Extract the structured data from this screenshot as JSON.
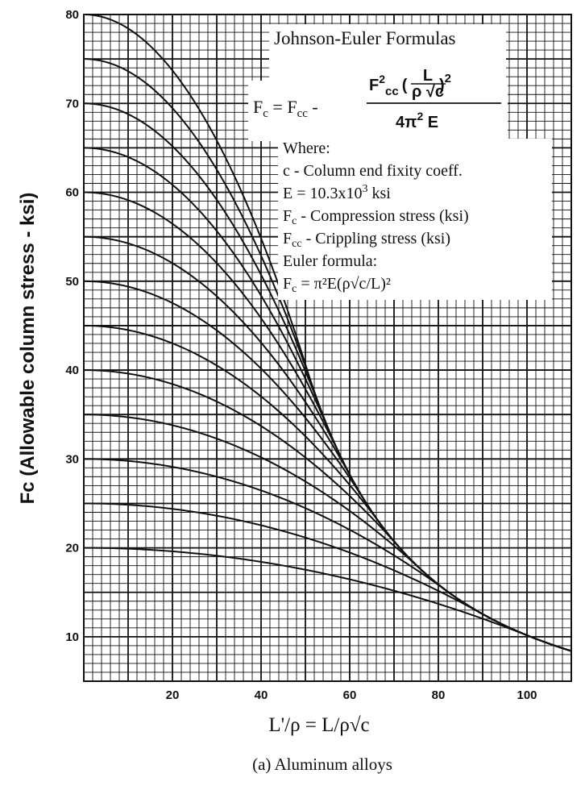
{
  "chart_data": {
    "type": "line",
    "xlabel": "L'/ρ = L/ρ√c",
    "ylabel": "Fc (Allowable column stress - ksi)",
    "caption": "(a) Aluminum alloys",
    "xlim": [
      0,
      110
    ],
    "ylim": [
      5,
      80
    ],
    "x_ticks": [
      20,
      40,
      60,
      80,
      100
    ],
    "y_ticks": [
      10,
      20,
      30,
      40,
      50,
      60,
      70,
      80
    ],
    "grid": true,
    "E_ksi": 10300,
    "series_fcc": [
      80,
      75,
      70,
      65,
      60,
      55,
      50,
      45,
      40,
      35,
      30,
      25,
      20
    ],
    "legend": {
      "title": "Johnson-Euler Formulas",
      "formula_lhs": "F",
      "formula_lhs_sub": "c",
      "formula_eq": " = F",
      "formula_eq_sub": "cc",
      "formula_minus": " -",
      "num_f": "F",
      "num_sup": "2",
      "num_sub": "cc",
      "num_paren_open": "(",
      "num_paren_close": ")",
      "num_sq": "2",
      "frac_L": "L",
      "frac_den": "ρ √c",
      "den": "4π",
      "den_sup": "2",
      "den_E": " E",
      "where": "Where:",
      "line_c": "c - Column end fixity coeff.",
      "line_E": "E = 10.3x10",
      "line_E_sup": "3",
      "line_E_unit": " ksi",
      "line_fc_F": "F",
      "line_fc_sub": "c",
      "line_fc_text": "  - Compression stress (ksi)",
      "line_fcc_F": "F",
      "line_fcc_sub": "cc",
      "line_fcc_text": " - Crippling stress (ksi)",
      "euler": "Euler formula:",
      "euler_F": "F",
      "euler_sub": "c",
      "euler_rhs": " = π²E(ρ√c/L)²"
    }
  }
}
